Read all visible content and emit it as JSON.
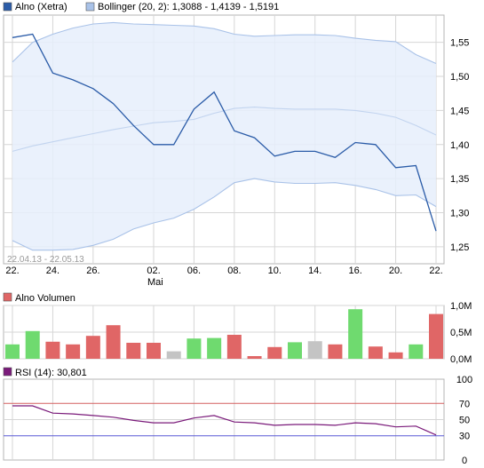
{
  "colors": {
    "price_line": "#2b5ca8",
    "band_fill": "#e6eefc",
    "band_line": "#a9c2e8",
    "mid_line": "#c2d4ef",
    "grid": "#d6d6d6",
    "frame": "#b4b4b4",
    "vol_up": "#6fda6f",
    "vol_down": "#e06666",
    "vol_flat": "#c4c4c4",
    "rsi_line": "#7a1a7a",
    "rsi_70": "#d36060",
    "rsi_30": "#5a5ad6",
    "legend_price": "#2b5ca8",
    "legend_boll": "#a9c2e8",
    "legend_vol": "#e06666",
    "legend_rsi": "#7a1a7a"
  },
  "chart_data": [
    {
      "type": "line",
      "legend": [
        {
          "name": "Alno (Xetra)"
        },
        {
          "name": "Bollinger (20, 2): 1,3088 - 1,4139 - 1,5191"
        }
      ],
      "date_range_label": "22.04.13 - 22.05.13",
      "x_tick_labels": [
        "22.",
        "24.",
        "26.",
        "02.",
        "06.",
        "08.",
        "10.",
        "14.",
        "16.",
        "20.",
        "22."
      ],
      "x_sub_label": "Mai",
      "y_tick_labels": [
        "1,55",
        "1,50",
        "1,45",
        "1,40",
        "1,35",
        "1,30",
        "1,25"
      ],
      "ylim": [
        1.225,
        1.59
      ],
      "y_ticks": [
        1.55,
        1.5,
        1.45,
        1.4,
        1.35,
        1.3,
        1.25
      ],
      "grid": true,
      "x": [
        "22.04.",
        "23.04.",
        "24.04.",
        "25.04.",
        "26.04.",
        "29.04.",
        "30.04.",
        "02.05.",
        "03.05.",
        "06.05.",
        "07.05.",
        "08.05.",
        "09.05.",
        "10.05.",
        "13.05.",
        "14.05.",
        "15.05.",
        "16.05.",
        "17.05.",
        "20.05.",
        "21.05.",
        "22.05."
      ],
      "series": [
        {
          "name": "Alno (Xetra)",
          "role": "price",
          "values": [
            1.557,
            1.562,
            1.505,
            1.495,
            1.482,
            1.46,
            1.428,
            1.4,
            1.4,
            1.452,
            1.477,
            1.42,
            1.41,
            1.383,
            1.39,
            1.39,
            1.381,
            1.403,
            1.4,
            1.366,
            1.369,
            1.273
          ]
        },
        {
          "name": "Bollinger upper",
          "role": "upper",
          "values": [
            1.521,
            1.55,
            1.562,
            1.571,
            1.577,
            1.579,
            1.577,
            1.576,
            1.575,
            1.574,
            1.57,
            1.562,
            1.559,
            1.56,
            1.561,
            1.561,
            1.56,
            1.556,
            1.553,
            1.551,
            1.532,
            1.519
          ]
        },
        {
          "name": "Bollinger middle",
          "role": "middle",
          "values": [
            1.39,
            1.398,
            1.404,
            1.41,
            1.416,
            1.422,
            1.427,
            1.432,
            1.434,
            1.437,
            1.446,
            1.453,
            1.455,
            1.453,
            1.452,
            1.452,
            1.452,
            1.45,
            1.446,
            1.44,
            1.428,
            1.414
          ]
        },
        {
          "name": "Bollinger lower",
          "role": "lower",
          "values": [
            1.259,
            1.245,
            1.245,
            1.246,
            1.252,
            1.261,
            1.276,
            1.285,
            1.292,
            1.305,
            1.323,
            1.344,
            1.35,
            1.345,
            1.343,
            1.343,
            1.344,
            1.34,
            1.334,
            1.325,
            1.326,
            1.309
          ]
        }
      ]
    },
    {
      "type": "bar",
      "legend": [
        {
          "name": "Alno Volumen"
        }
      ],
      "y_tick_labels": [
        "1,0M",
        "0,5M",
        "0,0M"
      ],
      "y_ticks": [
        1.0,
        0.5,
        0.0
      ],
      "ylim": [
        0,
        1.0
      ],
      "grid": true,
      "values": [
        0.27,
        0.52,
        0.32,
        0.27,
        0.43,
        0.63,
        0.3,
        0.3,
        0.14,
        0.38,
        0.39,
        0.45,
        0.05,
        0.22,
        0.31,
        0.33,
        0.27,
        0.93,
        0.23,
        0.12,
        0.27,
        0.84
      ],
      "directions": [
        "up",
        "up",
        "down",
        "down",
        "down",
        "down",
        "down",
        "down",
        "flat",
        "up",
        "up",
        "down",
        "down",
        "down",
        "up",
        "flat",
        "down",
        "up",
        "down",
        "down",
        "up",
        "down"
      ]
    },
    {
      "type": "line",
      "legend": [
        {
          "name": "RSI (14): 30,801"
        }
      ],
      "y_tick_labels": [
        "100",
        "70",
        "50",
        "30",
        "0"
      ],
      "y_ticks": [
        100,
        70,
        50,
        30,
        0
      ],
      "ylim": [
        0,
        100
      ],
      "reference_lines": [
        70,
        30
      ],
      "grid": true,
      "series": [
        {
          "name": "RSI (14)",
          "values": [
            67,
            67,
            58,
            57,
            55,
            53,
            49,
            46,
            46,
            52,
            55,
            47,
            46,
            43,
            44,
            44,
            43,
            46,
            45,
            41,
            42,
            31
          ]
        }
      ]
    }
  ]
}
